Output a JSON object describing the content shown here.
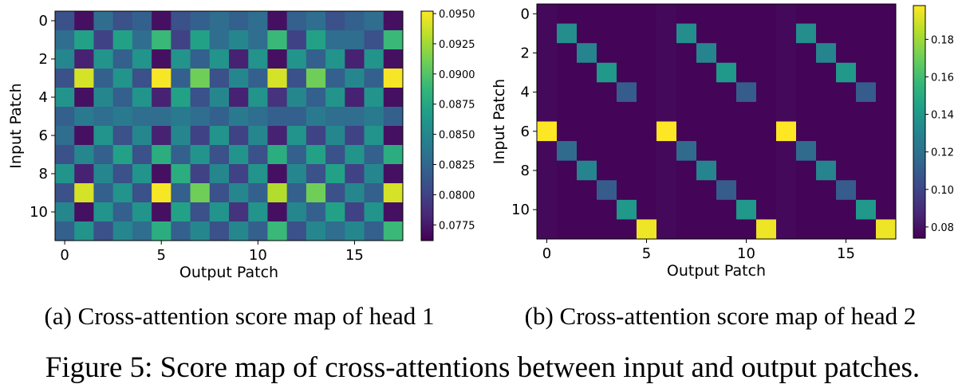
{
  "figure_caption": "Figure 5: Score map of cross-attentions between input and output patches.",
  "chart_data": [
    {
      "type": "heatmap",
      "caption": "(a) Cross-attention score map of head 1",
      "xlabel": "Output Patch",
      "ylabel": "Input Patch",
      "x_ticks": [
        0,
        5,
        10,
        15
      ],
      "y_ticks": [
        0,
        2,
        4,
        6,
        8,
        10
      ],
      "n_rows": 12,
      "n_cols": 18,
      "colormap": "viridis",
      "vmin": 0.0762,
      "vmax": 0.0952,
      "colorbar_ticks": [
        0.0775,
        0.08,
        0.0825,
        0.085,
        0.0875,
        0.09,
        0.0925,
        0.095
      ],
      "colorbar_tick_labels": [
        "0.0775",
        "0.0800",
        "0.0825",
        "0.0850",
        "0.0875",
        "0.0900",
        "0.0925",
        "0.0950"
      ],
      "values": [
        [
          0.081,
          0.077,
          0.083,
          0.081,
          0.082,
          0.077,
          0.081,
          0.082,
          0.083,
          0.082,
          0.083,
          0.077,
          0.082,
          0.083,
          0.081,
          0.082,
          0.083,
          0.077
        ],
        [
          0.083,
          0.087,
          0.08,
          0.087,
          0.083,
          0.089,
          0.08,
          0.087,
          0.083,
          0.085,
          0.083,
          0.089,
          0.08,
          0.087,
          0.083,
          0.083,
          0.081,
          0.089
        ],
        [
          0.085,
          0.078,
          0.086,
          0.082,
          0.086,
          0.077,
          0.086,
          0.082,
          0.086,
          0.078,
          0.086,
          0.077,
          0.086,
          0.082,
          0.086,
          0.078,
          0.086,
          0.077
        ],
        [
          0.081,
          0.094,
          0.082,
          0.086,
          0.081,
          0.095,
          0.082,
          0.091,
          0.081,
          0.085,
          0.082,
          0.094,
          0.081,
          0.091,
          0.082,
          0.085,
          0.082,
          0.095
        ],
        [
          0.086,
          0.077,
          0.085,
          0.082,
          0.086,
          0.078,
          0.087,
          0.081,
          0.085,
          0.078,
          0.086,
          0.079,
          0.085,
          0.082,
          0.086,
          0.078,
          0.086,
          0.077
        ],
        [
          0.082,
          0.084,
          0.083,
          0.084,
          0.083,
          0.083,
          0.084,
          0.083,
          0.082,
          0.084,
          0.083,
          0.082,
          0.082,
          0.084,
          0.083,
          0.083,
          0.084,
          0.082
        ],
        [
          0.083,
          0.077,
          0.086,
          0.081,
          0.085,
          0.078,
          0.085,
          0.08,
          0.086,
          0.08,
          0.085,
          0.078,
          0.086,
          0.08,
          0.085,
          0.08,
          0.086,
          0.077
        ],
        [
          0.081,
          0.085,
          0.082,
          0.087,
          0.081,
          0.088,
          0.082,
          0.086,
          0.081,
          0.086,
          0.081,
          0.088,
          0.082,
          0.087,
          0.081,
          0.086,
          0.082,
          0.088
        ],
        [
          0.086,
          0.078,
          0.085,
          0.081,
          0.086,
          0.077,
          0.088,
          0.08,
          0.085,
          0.08,
          0.086,
          0.077,
          0.085,
          0.081,
          0.087,
          0.08,
          0.085,
          0.077
        ],
        [
          0.081,
          0.094,
          0.082,
          0.086,
          0.081,
          0.095,
          0.082,
          0.091,
          0.081,
          0.085,
          0.082,
          0.093,
          0.082,
          0.091,
          0.081,
          0.085,
          0.082,
          0.094
        ],
        [
          0.085,
          0.077,
          0.086,
          0.082,
          0.086,
          0.077,
          0.087,
          0.081,
          0.086,
          0.079,
          0.086,
          0.077,
          0.085,
          0.082,
          0.087,
          0.08,
          0.086,
          0.077
        ],
        [
          0.082,
          0.086,
          0.081,
          0.085,
          0.083,
          0.088,
          0.082,
          0.085,
          0.081,
          0.085,
          0.082,
          0.089,
          0.081,
          0.085,
          0.083,
          0.085,
          0.082,
          0.089
        ]
      ]
    },
    {
      "type": "heatmap",
      "caption": "(b) Cross-attention score map of head 2",
      "xlabel": "Output Patch",
      "ylabel": "Input Patch",
      "x_ticks": [
        0,
        5,
        10,
        15
      ],
      "y_ticks": [
        0,
        2,
        4,
        6,
        8,
        10
      ],
      "n_rows": 12,
      "n_cols": 18,
      "colormap": "viridis",
      "vmin": 0.074,
      "vmax": 0.198,
      "colorbar_ticks": [
        0.08,
        0.1,
        0.12,
        0.14,
        0.16,
        0.18
      ],
      "colorbar_tick_labels": [
        "0.08",
        "0.10",
        "0.12",
        "0.14",
        "0.16",
        "0.18"
      ],
      "background_value": 0.075,
      "column_shading": [
        0.077,
        0.075,
        0.075,
        0.075,
        0.075,
        0.075,
        0.077,
        0.075,
        0.075,
        0.075,
        0.075,
        0.075,
        0.077,
        0.075,
        0.075,
        0.075,
        0.075,
        0.075
      ],
      "highlights": [
        {
          "row": 1,
          "cols": [
            1,
            7,
            13
          ],
          "value": 0.135
        },
        {
          "row": 2,
          "cols": [
            2,
            8,
            14
          ],
          "value": 0.13
        },
        {
          "row": 3,
          "cols": [
            3,
            9,
            15
          ],
          "value": 0.14
        },
        {
          "row": 4,
          "cols": [
            4,
            10,
            16
          ],
          "value": 0.11
        },
        {
          "row": 6,
          "cols": [
            0,
            6,
            12
          ],
          "value": 0.198
        },
        {
          "row": 7,
          "cols": [
            1,
            7,
            13
          ],
          "value": 0.117
        },
        {
          "row": 8,
          "cols": [
            2,
            8,
            14
          ],
          "value": 0.13
        },
        {
          "row": 9,
          "cols": [
            3,
            9,
            15
          ],
          "value": 0.11
        },
        {
          "row": 10,
          "cols": [
            4,
            10,
            16
          ],
          "value": 0.14
        },
        {
          "row": 11,
          "cols": [
            5,
            11,
            17
          ],
          "value": 0.195
        }
      ]
    }
  ]
}
